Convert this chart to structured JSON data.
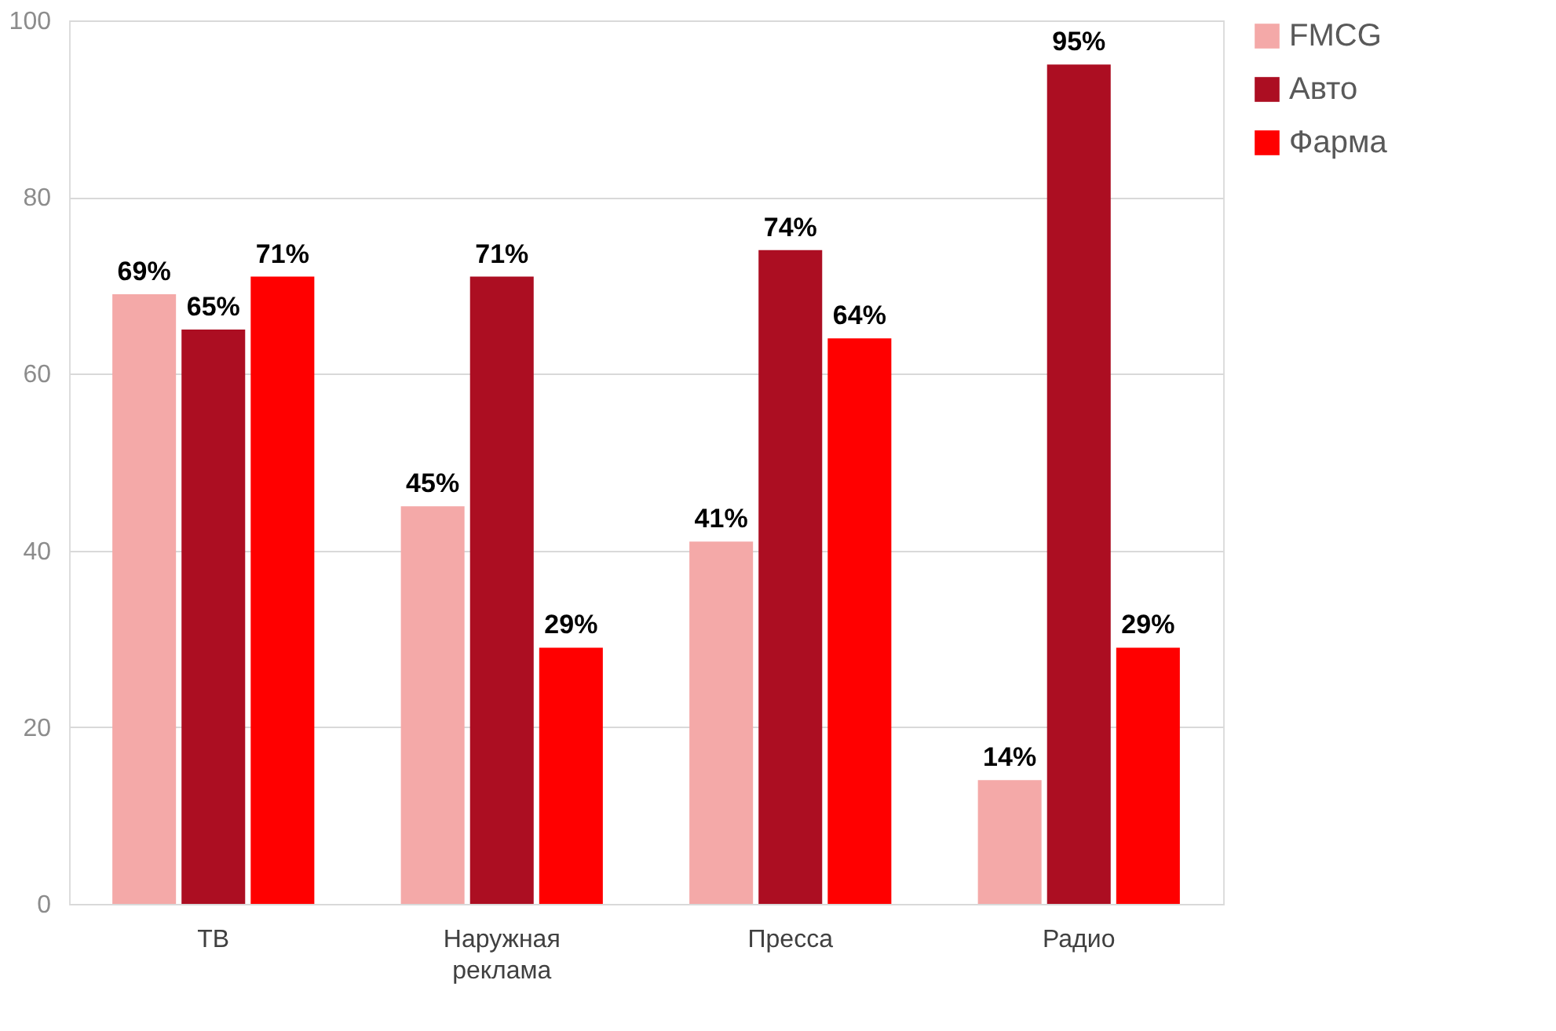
{
  "chart_data": {
    "type": "bar",
    "categories": [
      "ТВ",
      "Наружная реклама",
      "Пресса",
      "Радио"
    ],
    "series": [
      {
        "name": "FMCG",
        "color": "#f4a9a8",
        "values": [
          69,
          45,
          41,
          14
        ],
        "value_labels": [
          "69%",
          "45%",
          "41%",
          "14%"
        ]
      },
      {
        "name": "Авто",
        "color": "#ac0e22",
        "values": [
          65,
          71,
          74,
          95
        ],
        "value_labels": [
          "65%",
          "71%",
          "74%",
          "95%"
        ]
      },
      {
        "name": "Фарма",
        "color": "#ff0000",
        "values": [
          71,
          29,
          64,
          29
        ],
        "value_labels": [
          "71%",
          "29%",
          "64%",
          "29%"
        ]
      }
    ],
    "ylim": [
      0,
      100
    ],
    "yticks": [
      0,
      20,
      40,
      60,
      80,
      100
    ],
    "grid": "y",
    "legend": "top right"
  }
}
